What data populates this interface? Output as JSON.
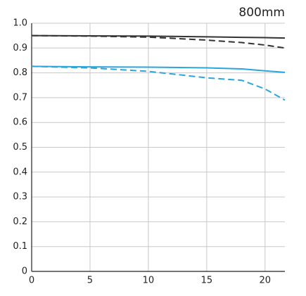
{
  "chart_data": {
    "type": "line",
    "title": "800mm",
    "x": [
      0,
      5,
      10,
      15,
      18,
      20,
      21.7
    ],
    "series": [
      {
        "color": "#333333",
        "dash": false,
        "values": [
          0.95,
          0.949,
          0.948,
          0.945,
          0.943,
          0.942,
          0.94
        ]
      },
      {
        "color": "#333333",
        "dash": true,
        "values": [
          0.95,
          0.948,
          0.944,
          0.932,
          0.922,
          0.912,
          0.9
        ]
      },
      {
        "color": "#2aa6df",
        "dash": false,
        "values": [
          0.826,
          0.824,
          0.823,
          0.82,
          0.816,
          0.808,
          0.802
        ]
      },
      {
        "color": "#2aa6df",
        "dash": true,
        "values": [
          0.826,
          0.82,
          0.806,
          0.78,
          0.77,
          0.735,
          0.69
        ]
      }
    ],
    "xlim": [
      0,
      21.7
    ],
    "xticks": [
      0,
      5,
      10,
      15,
      20
    ],
    "ylim": [
      0,
      1
    ],
    "yticks": [
      0,
      0.1,
      0.2,
      0.3,
      0.4,
      0.5,
      0.6,
      0.7,
      0.8,
      0.9,
      {
        "value": 1,
        "label": "1.0"
      }
    ],
    "grid": true
  }
}
